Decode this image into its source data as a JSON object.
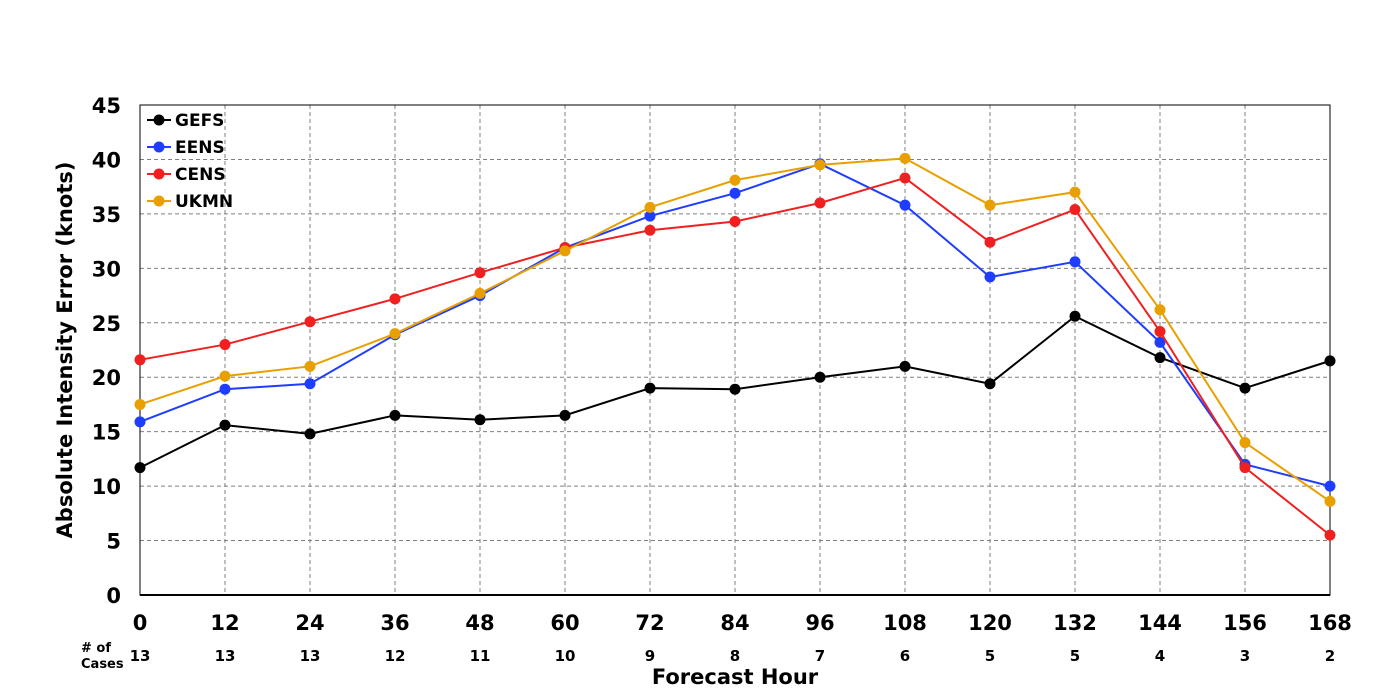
{
  "chart_data": {
    "type": "line",
    "xlabel": "Forecast Hour",
    "ylabel": "Absolute Intensity Error (knots)",
    "x": [
      0,
      12,
      24,
      36,
      48,
      60,
      72,
      84,
      96,
      108,
      120,
      132,
      144,
      156,
      168
    ],
    "xticks": [
      "0",
      "12",
      "24",
      "36",
      "48",
      "60",
      "72",
      "84",
      "96",
      "108",
      "120",
      "132",
      "144",
      "156",
      "168"
    ],
    "yticks": [
      "0",
      "5",
      "10",
      "15",
      "20",
      "25",
      "30",
      "35",
      "40",
      "45"
    ],
    "xlim": [
      0,
      168
    ],
    "ylim": [
      0,
      45
    ],
    "grid": true,
    "legend_position": "top-left",
    "cases_label_line1": "# of",
    "cases_label_line2": "Cases",
    "cases": [
      "13",
      "13",
      "13",
      "12",
      "11",
      "10",
      "9",
      "8",
      "7",
      "6",
      "5",
      "5",
      "4",
      "3",
      "2"
    ],
    "series": [
      {
        "name": "GEFS",
        "color": "#000000",
        "values": [
          11.7,
          15.6,
          14.8,
          16.5,
          16.1,
          16.5,
          19.0,
          18.9,
          20.0,
          21.0,
          19.4,
          25.6,
          21.8,
          19.0,
          21.5
        ]
      },
      {
        "name": "EENS",
        "color": "#1f3dff",
        "values": [
          15.9,
          18.9,
          19.4,
          23.9,
          27.5,
          31.9,
          34.8,
          36.9,
          39.6,
          35.8,
          29.2,
          30.6,
          23.2,
          12.0,
          10.0
        ]
      },
      {
        "name": "CENS",
        "color": "#f02020",
        "values": [
          21.6,
          23.0,
          25.1,
          27.2,
          29.6,
          31.9,
          33.5,
          34.3,
          36.0,
          38.3,
          32.4,
          35.4,
          24.2,
          11.7,
          5.5
        ]
      },
      {
        "name": "UKMN",
        "color": "#e8a000",
        "values": [
          17.5,
          20.1,
          21.0,
          24.0,
          27.7,
          31.6,
          35.6,
          38.1,
          39.5,
          40.1,
          35.8,
          37.0,
          26.2,
          14.0,
          8.6
        ]
      }
    ]
  }
}
